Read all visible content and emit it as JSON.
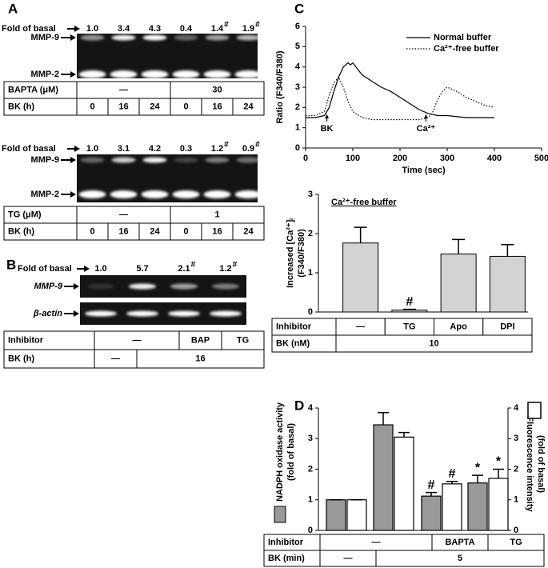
{
  "panel_labels": [
    "A",
    "B",
    "C",
    "D"
  ],
  "panel_a": {
    "blots": [
      {
        "fold_label": "Fold of basal",
        "folds": [
          {
            "text": "1.0"
          },
          {
            "text": "3.4"
          },
          {
            "text": "4.3"
          },
          {
            "text": "0.4"
          },
          {
            "text": "1.4",
            "mark": "#"
          },
          {
            "text": "1.9",
            "mark": "#"
          }
        ],
        "bands": [
          "MMP-9",
          "MMP-2"
        ],
        "table": [
          {
            "label": "BAPTA (μM)",
            "cells": [
              "—",
              "30"
            ]
          },
          {
            "label": "BK (h)",
            "cells": [
              "0",
              "16",
              "24",
              "0",
              "16",
              "24"
            ]
          }
        ]
      },
      {
        "fold_label": "Fold of basal",
        "folds": [
          {
            "text": "1.0"
          },
          {
            "text": "3.1"
          },
          {
            "text": "4.2"
          },
          {
            "text": "0.3"
          },
          {
            "text": "1.2",
            "mark": "#"
          },
          {
            "text": "0.9",
            "mark": "#"
          }
        ],
        "bands": [
          "MMP-9",
          "MMP-2"
        ],
        "table": [
          {
            "label": "TG (μM)",
            "cells": [
              "—",
              "1"
            ]
          },
          {
            "label": "BK (h)",
            "cells": [
              "0",
              "16",
              "24",
              "0",
              "16",
              "24"
            ]
          }
        ]
      }
    ]
  },
  "panel_b": {
    "fold_label": "Fold of basal",
    "folds": [
      {
        "text": "1.0"
      },
      {
        "text": "5.7"
      },
      {
        "text": "2.1",
        "mark": "#"
      },
      {
        "text": "1.2",
        "mark": "#"
      }
    ],
    "bands": [
      "MMP-9",
      "β-actin"
    ],
    "table": [
      {
        "label": "Inhibitor",
        "cells": [
          "—",
          "BAP",
          "TG"
        ]
      },
      {
        "label": "BK (h)",
        "cells": [
          "—",
          "16"
        ]
      }
    ]
  },
  "chart_data": [
    {
      "type": "line",
      "xlabel": "Time (sec)",
      "ylabel": "Ratio (F340/F380)",
      "xlim": [
        0,
        500
      ],
      "xticks": [
        0,
        100,
        200,
        300,
        400,
        500
      ],
      "ylim": [
        0,
        6
      ],
      "yticks": [
        0,
        1,
        2,
        3,
        4,
        5,
        6
      ],
      "legend": "upper right",
      "series": [
        {
          "name": "Normal buffer",
          "color": "#000000",
          "style": "solid",
          "x": [
            0,
            20,
            40,
            50,
            60,
            70,
            80,
            90,
            95,
            100,
            110,
            120,
            140,
            160,
            180,
            200,
            220,
            240,
            260,
            280,
            300,
            340,
            400
          ],
          "values": [
            1.5,
            1.5,
            1.6,
            2.0,
            2.8,
            3.5,
            4.0,
            4.2,
            4.1,
            4.2,
            3.9,
            3.6,
            3.3,
            3.0,
            2.8,
            2.5,
            2.2,
            1.9,
            1.7,
            1.6,
            1.6,
            1.5,
            1.5
          ]
        },
        {
          "name": "Ca²⁺-free buffer",
          "color": "#000000",
          "style": "dotted",
          "x": [
            0,
            20,
            40,
            50,
            60,
            70,
            80,
            90,
            100,
            120,
            140,
            160,
            200,
            240,
            260,
            270,
            280,
            290,
            300,
            320,
            340,
            360,
            380,
            400
          ],
          "values": [
            1.6,
            1.6,
            1.8,
            2.6,
            3.2,
            3.5,
            3.0,
            2.3,
            1.8,
            1.5,
            1.4,
            1.4,
            1.4,
            1.4,
            1.5,
            1.8,
            2.4,
            2.8,
            3.0,
            2.8,
            2.5,
            2.3,
            2.1,
            2.0
          ]
        }
      ],
      "annotations": [
        {
          "text": "BK",
          "x": 45
        },
        {
          "text": "Ca²⁺",
          "x": 255
        }
      ]
    },
    {
      "type": "bar",
      "subtitle": "Ca²⁺-free buffer",
      "ylabel": [
        "Increased [Ca²⁺]ᵢ",
        "(F340/F380)"
      ],
      "ylim": [
        0,
        3
      ],
      "yticks": [
        0,
        1,
        2,
        3
      ],
      "color": "#d3d3d3",
      "values": [
        1.76,
        0.05,
        1.48,
        1.42
      ],
      "errors": [
        0.4,
        0.02,
        0.37,
        0.3
      ],
      "annotations": [
        null,
        "#",
        null,
        null
      ],
      "table": [
        {
          "label": "Inhibitor",
          "cells": [
            "—",
            "TG",
            "Apo",
            "DPI"
          ]
        },
        {
          "label": "BK (nM)",
          "cells": [
            "10"
          ]
        }
      ]
    },
    {
      "type": "grouped_bar",
      "ylabel": [
        "NADPH oxidase activity",
        "(fold of basal)"
      ],
      "y2label": [
        "Fluorescence intensity",
        "(fold of basal)"
      ],
      "ylim": [
        0,
        4
      ],
      "yticks": [
        0,
        1,
        2,
        3,
        4
      ],
      "y2lim": [
        0,
        4
      ],
      "y2ticks": [
        0,
        1,
        2,
        3,
        4
      ],
      "series": [
        {
          "color": "#999999",
          "values": [
            1,
            3.45,
            1.12,
            1.55
          ],
          "errors": [
            0,
            0.4,
            0.12,
            0.25
          ],
          "annotations": [
            null,
            null,
            "#",
            "*"
          ]
        },
        {
          "color": "#ffffff",
          "axis": "y2",
          "values": [
            1,
            3.05,
            1.52,
            1.7
          ],
          "errors": [
            0,
            0.15,
            0.08,
            0.3
          ],
          "annotations": [
            null,
            null,
            "#",
            "*"
          ]
        }
      ],
      "table": [
        {
          "label": "Inhibitor",
          "cells": [
            "—",
            "BAPTA",
            "TG"
          ]
        },
        {
          "label": "BK (min)",
          "cells": [
            "—",
            "5"
          ]
        }
      ]
    }
  ]
}
